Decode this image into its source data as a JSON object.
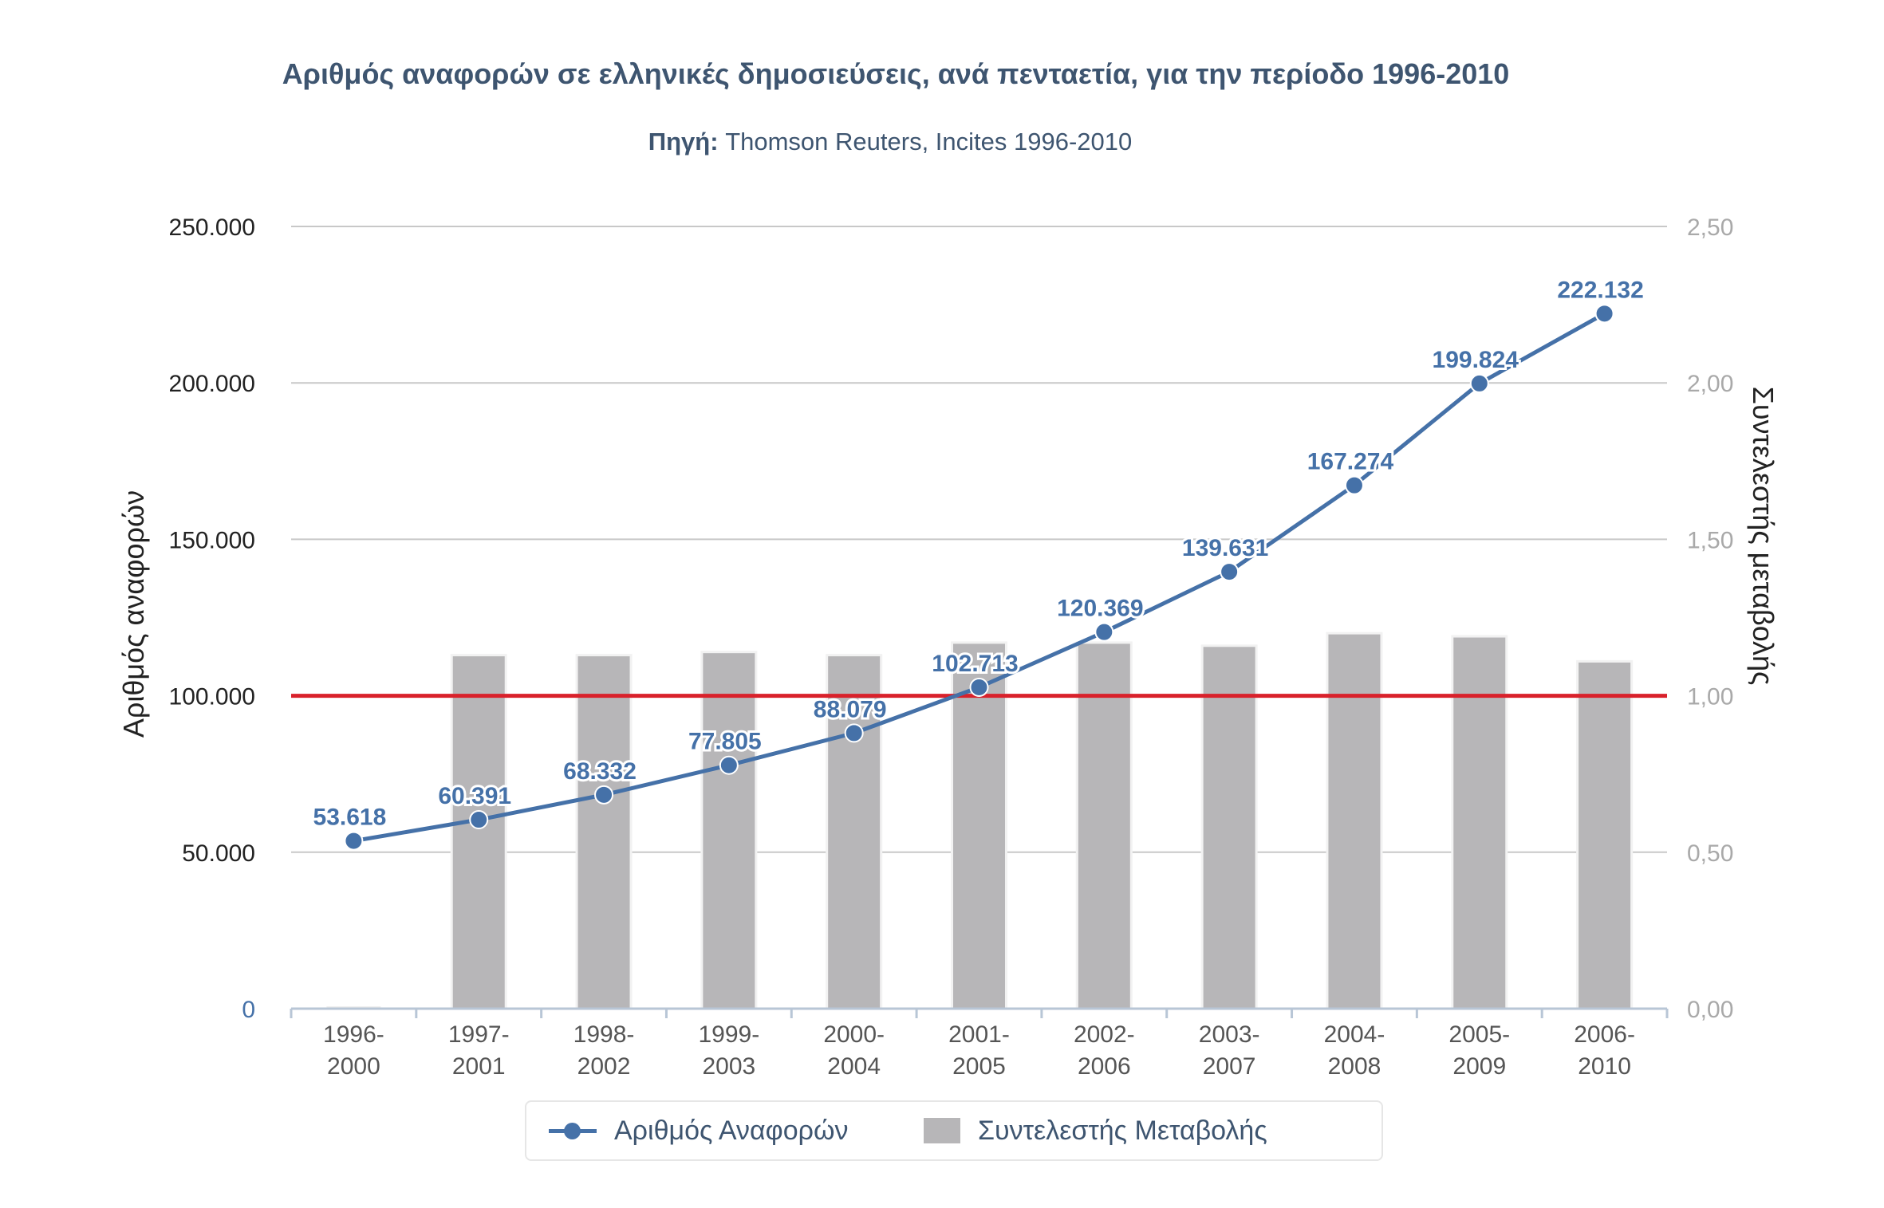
{
  "header": {
    "title": "Αριθμός αναφορών σε ελληνικές δημοσιεύσεις, ανά πενταετία, για την περίοδο 1996-2010",
    "source_label": "Πηγή:",
    "source_text": "Thomson Reuters, Incites 1996-2010"
  },
  "colors": {
    "line": "#4571a8",
    "bars": "#b7b6b8",
    "reference_line": "#d9212b",
    "text": "#3e5570",
    "grid": "#c8c8c8"
  },
  "chart_data": {
    "type": "bar+line",
    "categories": [
      "1996-2000",
      "1997-2001",
      "1998-2002",
      "1999-2003",
      "2000-2004",
      "2001-2005",
      "2002-2006",
      "2003-2007",
      "2004-2008",
      "2005-2009",
      "2006-2010"
    ],
    "category_labels": [
      [
        "1996-",
        "2000"
      ],
      [
        "1997-",
        "2001"
      ],
      [
        "1998-",
        "2002"
      ],
      [
        "1999-",
        "2003"
      ],
      [
        "2000-",
        "2004"
      ],
      [
        "2001-",
        "2005"
      ],
      [
        "2002-",
        "2006"
      ],
      [
        "2003-",
        "2007"
      ],
      [
        "2004-",
        "2008"
      ],
      [
        "2005-",
        "2009"
      ],
      [
        "2006-",
        "2010"
      ]
    ],
    "series": [
      {
        "name": "Αριθμός Αναφορών",
        "type": "line",
        "axis": "left",
        "values": [
          53618,
          60391,
          68332,
          77805,
          88079,
          102713,
          120369,
          139631,
          167274,
          199824,
          222132
        ],
        "data_labels": [
          "53.618",
          "60.391",
          "68.332",
          "77.805",
          "88.079",
          "102.713",
          "120.369",
          "139.631",
          "167.274",
          "199.824",
          "222.132"
        ]
      },
      {
        "name": "Συντελεστής Μεταβολής",
        "type": "bar",
        "axis": "right",
        "values": [
          0,
          1.13,
          1.13,
          1.14,
          1.13,
          1.17,
          1.17,
          1.16,
          1.2,
          1.19,
          1.11
        ]
      }
    ],
    "reference_line": {
      "axis": "right",
      "value": 1.0
    },
    "y_left": {
      "label": "Αριθμός αναφορών",
      "ylim": [
        0,
        250000
      ],
      "ticks": [
        0,
        50000,
        100000,
        150000,
        200000,
        250000
      ],
      "tick_labels": [
        "0",
        "50.000",
        "100.000",
        "150.000",
        "200.000",
        "250.000"
      ]
    },
    "y_right": {
      "label": "Συντελεστής μεταβολής",
      "ylim": [
        0,
        2.5
      ],
      "ticks": [
        0,
        0.5,
        1.0,
        1.5,
        2.0,
        2.5
      ],
      "tick_labels": [
        "0,00",
        "0,50",
        "1,00",
        "1,50",
        "2,00",
        "2,50"
      ]
    },
    "grid": true,
    "legend_position": "bottom-center"
  }
}
